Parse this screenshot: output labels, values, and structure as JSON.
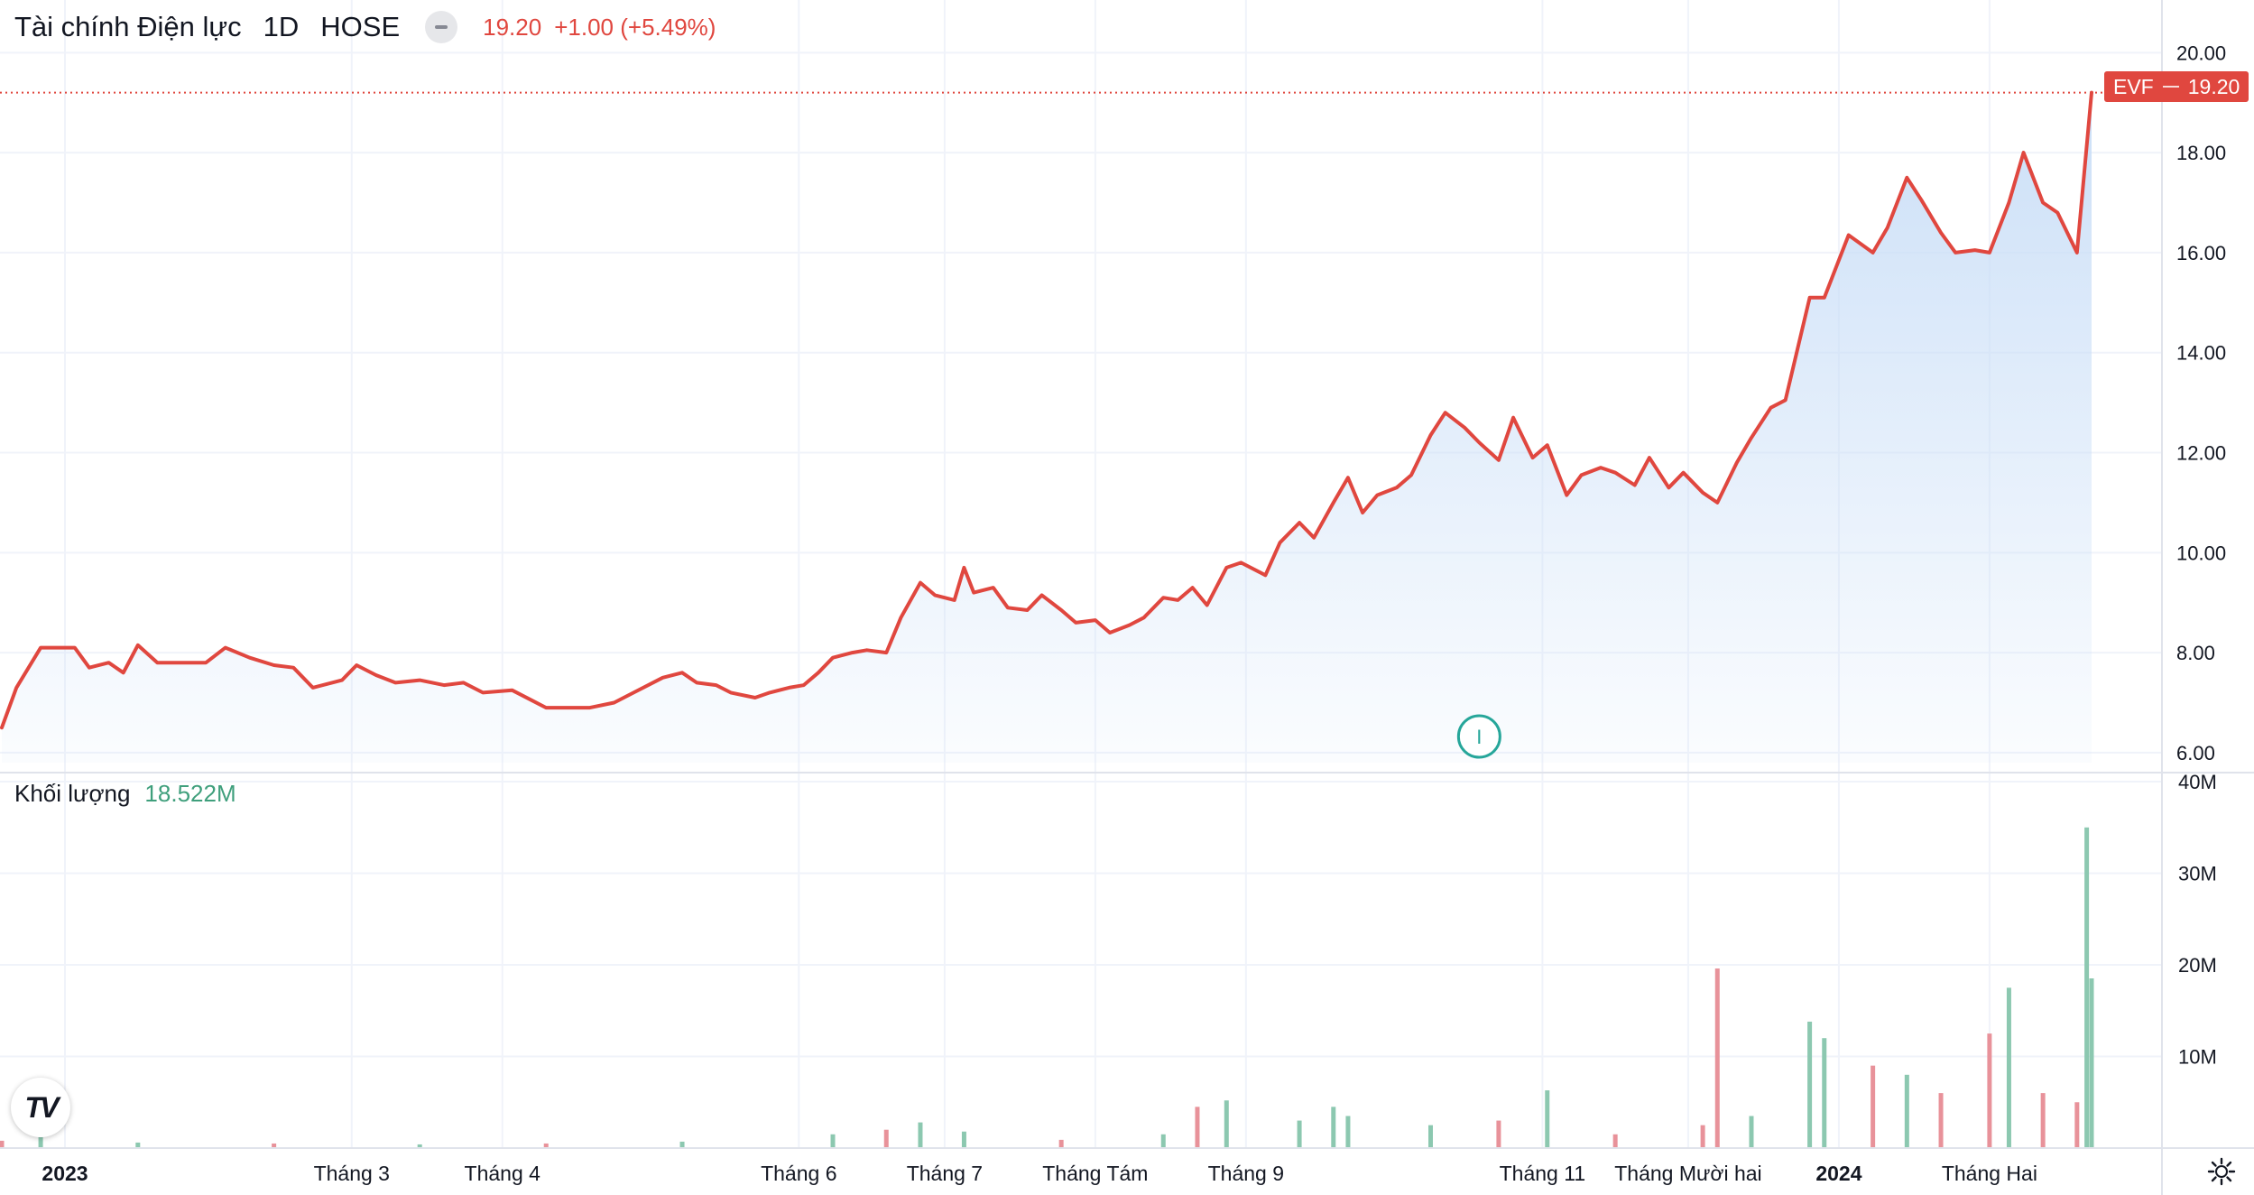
{
  "header": {
    "symbol_name": "Tài chính Điện lực",
    "interval": "1D",
    "exchange": "HOSE",
    "last_price": "19.20",
    "change": "+1.00 (+5.49%)"
  },
  "price_tag": {
    "ticker": "EVF",
    "price": "19.20"
  },
  "volume_header": {
    "title": "Khối lượng",
    "value": "18.522M"
  },
  "event_marker": {
    "label": "I"
  },
  "logo": {
    "text": "TV"
  },
  "colors": {
    "line": "#e0473f",
    "area_top": "#c9def7",
    "up_volume": "#8cc8b0",
    "down_volume": "#e8929a",
    "grid": "#f0f3fa",
    "axis_text": "#131722",
    "event_marker": "#26a69a"
  },
  "icons": {
    "status": "minus-circle-icon",
    "settings": "gear-icon",
    "logo": "tradingview-logo-icon"
  },
  "chart_data": {
    "type": "line",
    "title": "Tài chính Điện lực",
    "x_axis": {
      "type": "time",
      "range": [
        "2022-12-19",
        "2024-02-22"
      ],
      "tick_labels": [
        {
          "date": "2023-01-01",
          "label": "2023",
          "bold": true
        },
        {
          "date": "2023-03-01",
          "label": "Tháng 3"
        },
        {
          "date": "2023-04-01",
          "label": "Tháng 4"
        },
        {
          "date": "2023-06-01",
          "label": "Tháng 6"
        },
        {
          "date": "2023-07-01",
          "label": "Tháng 7"
        },
        {
          "date": "2023-08-01",
          "label": "Tháng Tám"
        },
        {
          "date": "2023-09-01",
          "label": "Tháng 9"
        },
        {
          "date": "2023-11-01",
          "label": "Tháng 11"
        },
        {
          "date": "2023-12-01",
          "label": "Tháng Mười hai"
        },
        {
          "date": "2024-01-01",
          "label": "2024",
          "bold": true
        },
        {
          "date": "2024-02-01",
          "label": "Tháng Hai"
        }
      ]
    },
    "price_axis": {
      "ylim": [
        5.8,
        20.8
      ],
      "ticks": [
        "6.00",
        "8.00",
        "10.00",
        "12.00",
        "14.00",
        "16.00",
        "18.00",
        "20.00"
      ]
    },
    "volume_axis": {
      "ylim": [
        0,
        40000000
      ],
      "ticks": [
        {
          "value": 10000000,
          "label": "10M"
        },
        {
          "value": 20000000,
          "label": "20M"
        },
        {
          "value": 30000000,
          "label": "30M"
        },
        {
          "value": 40000000,
          "label": "40M"
        }
      ]
    },
    "series": [
      {
        "name": "EVF",
        "type": "area-line",
        "points": [
          [
            "2022-12-19",
            6.5
          ],
          [
            "2022-12-22",
            7.3
          ],
          [
            "2022-12-27",
            8.1
          ],
          [
            "2023-01-03",
            8.1
          ],
          [
            "2023-01-06",
            7.7
          ],
          [
            "2023-01-10",
            7.8
          ],
          [
            "2023-01-13",
            7.6
          ],
          [
            "2023-01-16",
            8.15
          ],
          [
            "2023-01-20",
            7.8
          ],
          [
            "2023-01-30",
            7.8
          ],
          [
            "2023-02-03",
            8.1
          ],
          [
            "2023-02-08",
            7.9
          ],
          [
            "2023-02-13",
            7.75
          ],
          [
            "2023-02-17",
            7.7
          ],
          [
            "2023-02-21",
            7.3
          ],
          [
            "2023-02-27",
            7.45
          ],
          [
            "2023-03-02",
            7.75
          ],
          [
            "2023-03-06",
            7.55
          ],
          [
            "2023-03-10",
            7.4
          ],
          [
            "2023-03-15",
            7.45
          ],
          [
            "2023-03-20",
            7.35
          ],
          [
            "2023-03-24",
            7.4
          ],
          [
            "2023-03-28",
            7.2
          ],
          [
            "2023-04-03",
            7.25
          ],
          [
            "2023-04-07",
            7.05
          ],
          [
            "2023-04-10",
            6.9
          ],
          [
            "2023-04-14",
            6.9
          ],
          [
            "2023-04-19",
            6.9
          ],
          [
            "2023-04-24",
            7.0
          ],
          [
            "2023-04-28",
            7.2
          ],
          [
            "2023-05-04",
            7.5
          ],
          [
            "2023-05-08",
            7.6
          ],
          [
            "2023-05-11",
            7.4
          ],
          [
            "2023-05-15",
            7.35
          ],
          [
            "2023-05-18",
            7.2
          ],
          [
            "2023-05-23",
            7.1
          ],
          [
            "2023-05-26",
            7.2
          ],
          [
            "2023-05-30",
            7.3
          ],
          [
            "2023-06-02",
            7.35
          ],
          [
            "2023-06-05",
            7.6
          ],
          [
            "2023-06-08",
            7.9
          ],
          [
            "2023-06-12",
            8.0
          ],
          [
            "2023-06-15",
            8.05
          ],
          [
            "2023-06-19",
            8.0
          ],
          [
            "2023-06-22",
            8.7
          ],
          [
            "2023-06-26",
            9.4
          ],
          [
            "2023-06-29",
            9.15
          ],
          [
            "2023-07-03",
            9.05
          ],
          [
            "2023-07-05",
            9.7
          ],
          [
            "2023-07-07",
            9.2
          ],
          [
            "2023-07-11",
            9.3
          ],
          [
            "2023-07-14",
            8.9
          ],
          [
            "2023-07-18",
            8.85
          ],
          [
            "2023-07-21",
            9.15
          ],
          [
            "2023-07-25",
            8.85
          ],
          [
            "2023-07-28",
            8.6
          ],
          [
            "2023-08-01",
            8.65
          ],
          [
            "2023-08-04",
            8.4
          ],
          [
            "2023-08-08",
            8.55
          ],
          [
            "2023-08-11",
            8.7
          ],
          [
            "2023-08-15",
            9.1
          ],
          [
            "2023-08-18",
            9.05
          ],
          [
            "2023-08-21",
            9.3
          ],
          [
            "2023-08-24",
            8.95
          ],
          [
            "2023-08-28",
            9.7
          ],
          [
            "2023-08-31",
            9.8
          ],
          [
            "2023-09-05",
            9.55
          ],
          [
            "2023-09-08",
            10.2
          ],
          [
            "2023-09-12",
            10.6
          ],
          [
            "2023-09-15",
            10.3
          ],
          [
            "2023-09-19",
            11.0
          ],
          [
            "2023-09-22",
            11.5
          ],
          [
            "2023-09-25",
            10.8
          ],
          [
            "2023-09-28",
            11.15
          ],
          [
            "2023-10-02",
            11.3
          ],
          [
            "2023-10-05",
            11.55
          ],
          [
            "2023-10-09",
            12.35
          ],
          [
            "2023-10-12",
            12.8
          ],
          [
            "2023-10-16",
            12.5
          ],
          [
            "2023-10-19",
            12.2
          ],
          [
            "2023-10-23",
            11.85
          ],
          [
            "2023-10-26",
            12.7
          ],
          [
            "2023-10-30",
            11.9
          ],
          [
            "2023-11-02",
            12.15
          ],
          [
            "2023-11-06",
            11.15
          ],
          [
            "2023-11-09",
            11.55
          ],
          [
            "2023-11-13",
            11.7
          ],
          [
            "2023-11-16",
            11.6
          ],
          [
            "2023-11-20",
            11.35
          ],
          [
            "2023-11-23",
            11.9
          ],
          [
            "2023-11-27",
            11.3
          ],
          [
            "2023-11-30",
            11.6
          ],
          [
            "2023-12-04",
            11.2
          ],
          [
            "2023-12-07",
            11.0
          ],
          [
            "2023-12-11",
            11.8
          ],
          [
            "2023-12-14",
            12.3
          ],
          [
            "2023-12-18",
            12.9
          ],
          [
            "2023-12-21",
            13.05
          ],
          [
            "2023-12-26",
            15.1
          ],
          [
            "2023-12-29",
            15.1
          ],
          [
            "2024-01-03",
            16.35
          ],
          [
            "2024-01-08",
            16.0
          ],
          [
            "2024-01-11",
            16.5
          ],
          [
            "2024-01-15",
            17.5
          ],
          [
            "2024-01-18",
            17.05
          ],
          [
            "2024-01-22",
            16.4
          ],
          [
            "2024-01-25",
            16.0
          ],
          [
            "2024-01-29",
            16.05
          ],
          [
            "2024-02-01",
            16.0
          ],
          [
            "2024-02-05",
            17.0
          ],
          [
            "2024-02-08",
            18.0
          ],
          [
            "2024-02-12",
            17.0
          ],
          [
            "2024-02-15",
            16.8
          ],
          [
            "2024-02-19",
            16.0
          ],
          [
            "2024-02-22",
            19.2
          ]
        ]
      },
      {
        "name": "Khối lượng",
        "type": "volume",
        "points": [
          [
            "2022-12-19",
            800000
          ],
          [
            "2022-12-27",
            1200000
          ],
          [
            "2023-01-16",
            600000
          ],
          [
            "2023-02-13",
            500000
          ],
          [
            "2023-03-15",
            400000
          ],
          [
            "2023-04-10",
            500000
          ],
          [
            "2023-05-08",
            700000
          ],
          [
            "2023-06-08",
            1500000
          ],
          [
            "2023-06-19",
            2000000
          ],
          [
            "2023-06-26",
            2800000
          ],
          [
            "2023-07-05",
            1800000
          ],
          [
            "2023-07-25",
            900000
          ],
          [
            "2023-08-15",
            1500000
          ],
          [
            "2023-08-22",
            4500000
          ],
          [
            "2023-08-28",
            5200000
          ],
          [
            "2023-09-12",
            3000000
          ],
          [
            "2023-09-19",
            4500000
          ],
          [
            "2023-09-22",
            3500000
          ],
          [
            "2023-10-09",
            2500000
          ],
          [
            "2023-10-23",
            3000000
          ],
          [
            "2023-11-02",
            6300000
          ],
          [
            "2023-11-16",
            1500000
          ],
          [
            "2023-12-04",
            2500000
          ],
          [
            "2023-12-07",
            19600000
          ],
          [
            "2023-12-14",
            3500000
          ],
          [
            "2023-12-26",
            13800000
          ],
          [
            "2023-12-29",
            12000000
          ],
          [
            "2024-01-08",
            9000000
          ],
          [
            "2024-01-15",
            8000000
          ],
          [
            "2024-01-22",
            6000000
          ],
          [
            "2024-02-01",
            12500000
          ],
          [
            "2024-02-05",
            17500000
          ],
          [
            "2024-02-12",
            6000000
          ],
          [
            "2024-02-19",
            5000000
          ],
          [
            "2024-02-21",
            35000000
          ],
          [
            "2024-02-22",
            18522000
          ]
        ]
      }
    ]
  }
}
